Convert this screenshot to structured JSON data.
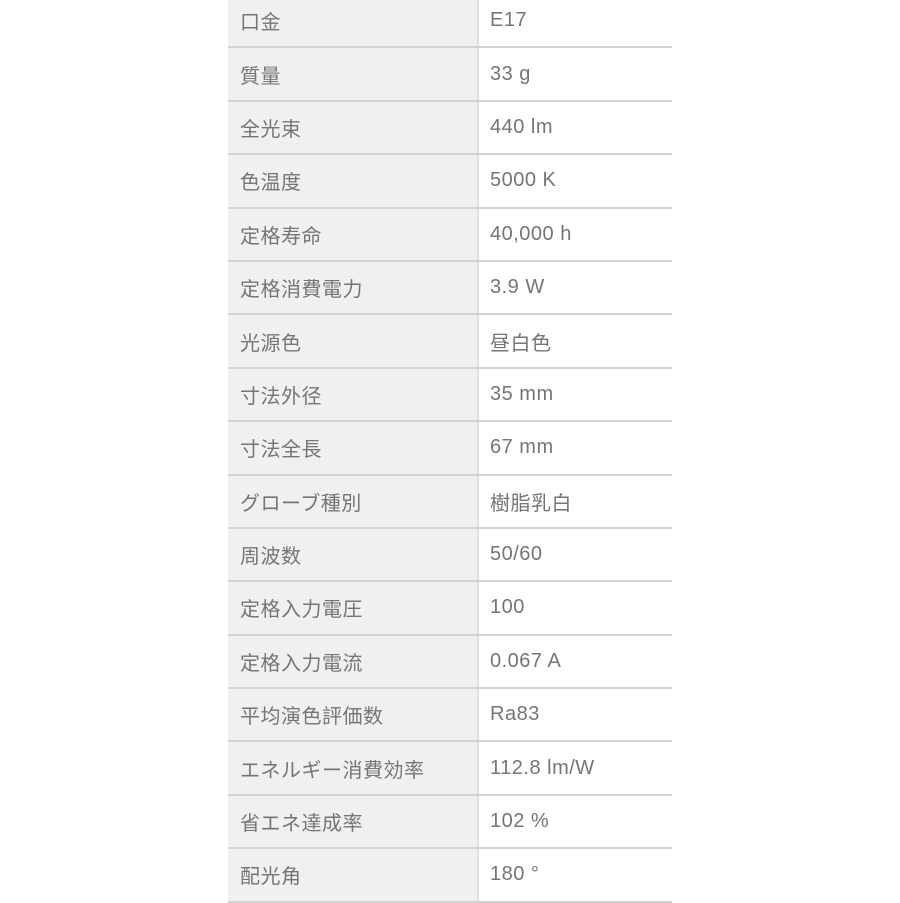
{
  "colors": {
    "label_background": "#f0f0f0",
    "value_background": "#ffffff",
    "row_border": "#d2d2d2",
    "column_divider": "#e0e0e0",
    "text": "#757575"
  },
  "table": {
    "rows": [
      {
        "label": "口金",
        "value": "E17"
      },
      {
        "label": "質量",
        "value": "33 g"
      },
      {
        "label": "全光束",
        "value": "440 lm"
      },
      {
        "label": "色温度",
        "value": "5000 K"
      },
      {
        "label": "定格寿命",
        "value": "40,000 h"
      },
      {
        "label": "定格消費電力",
        "value": "3.9 W"
      },
      {
        "label": "光源色",
        "value": "昼白色"
      },
      {
        "label": "寸法外径",
        "value": "35 mm"
      },
      {
        "label": "寸法全長",
        "value": "67 mm"
      },
      {
        "label": "グローブ種別",
        "value": "樹脂乳白"
      },
      {
        "label": "周波数",
        "value": "50/60"
      },
      {
        "label": "定格入力電圧",
        "value": "100"
      },
      {
        "label": "定格入力電流",
        "value": "0.067 A"
      },
      {
        "label": "平均演色評価数",
        "value": "Ra83"
      },
      {
        "label": "エネルギー消費効率",
        "value": "112.8 lm/W"
      },
      {
        "label": "省エネ達成率",
        "value": "102 %"
      },
      {
        "label": "配光角",
        "value": "180 °"
      }
    ]
  }
}
